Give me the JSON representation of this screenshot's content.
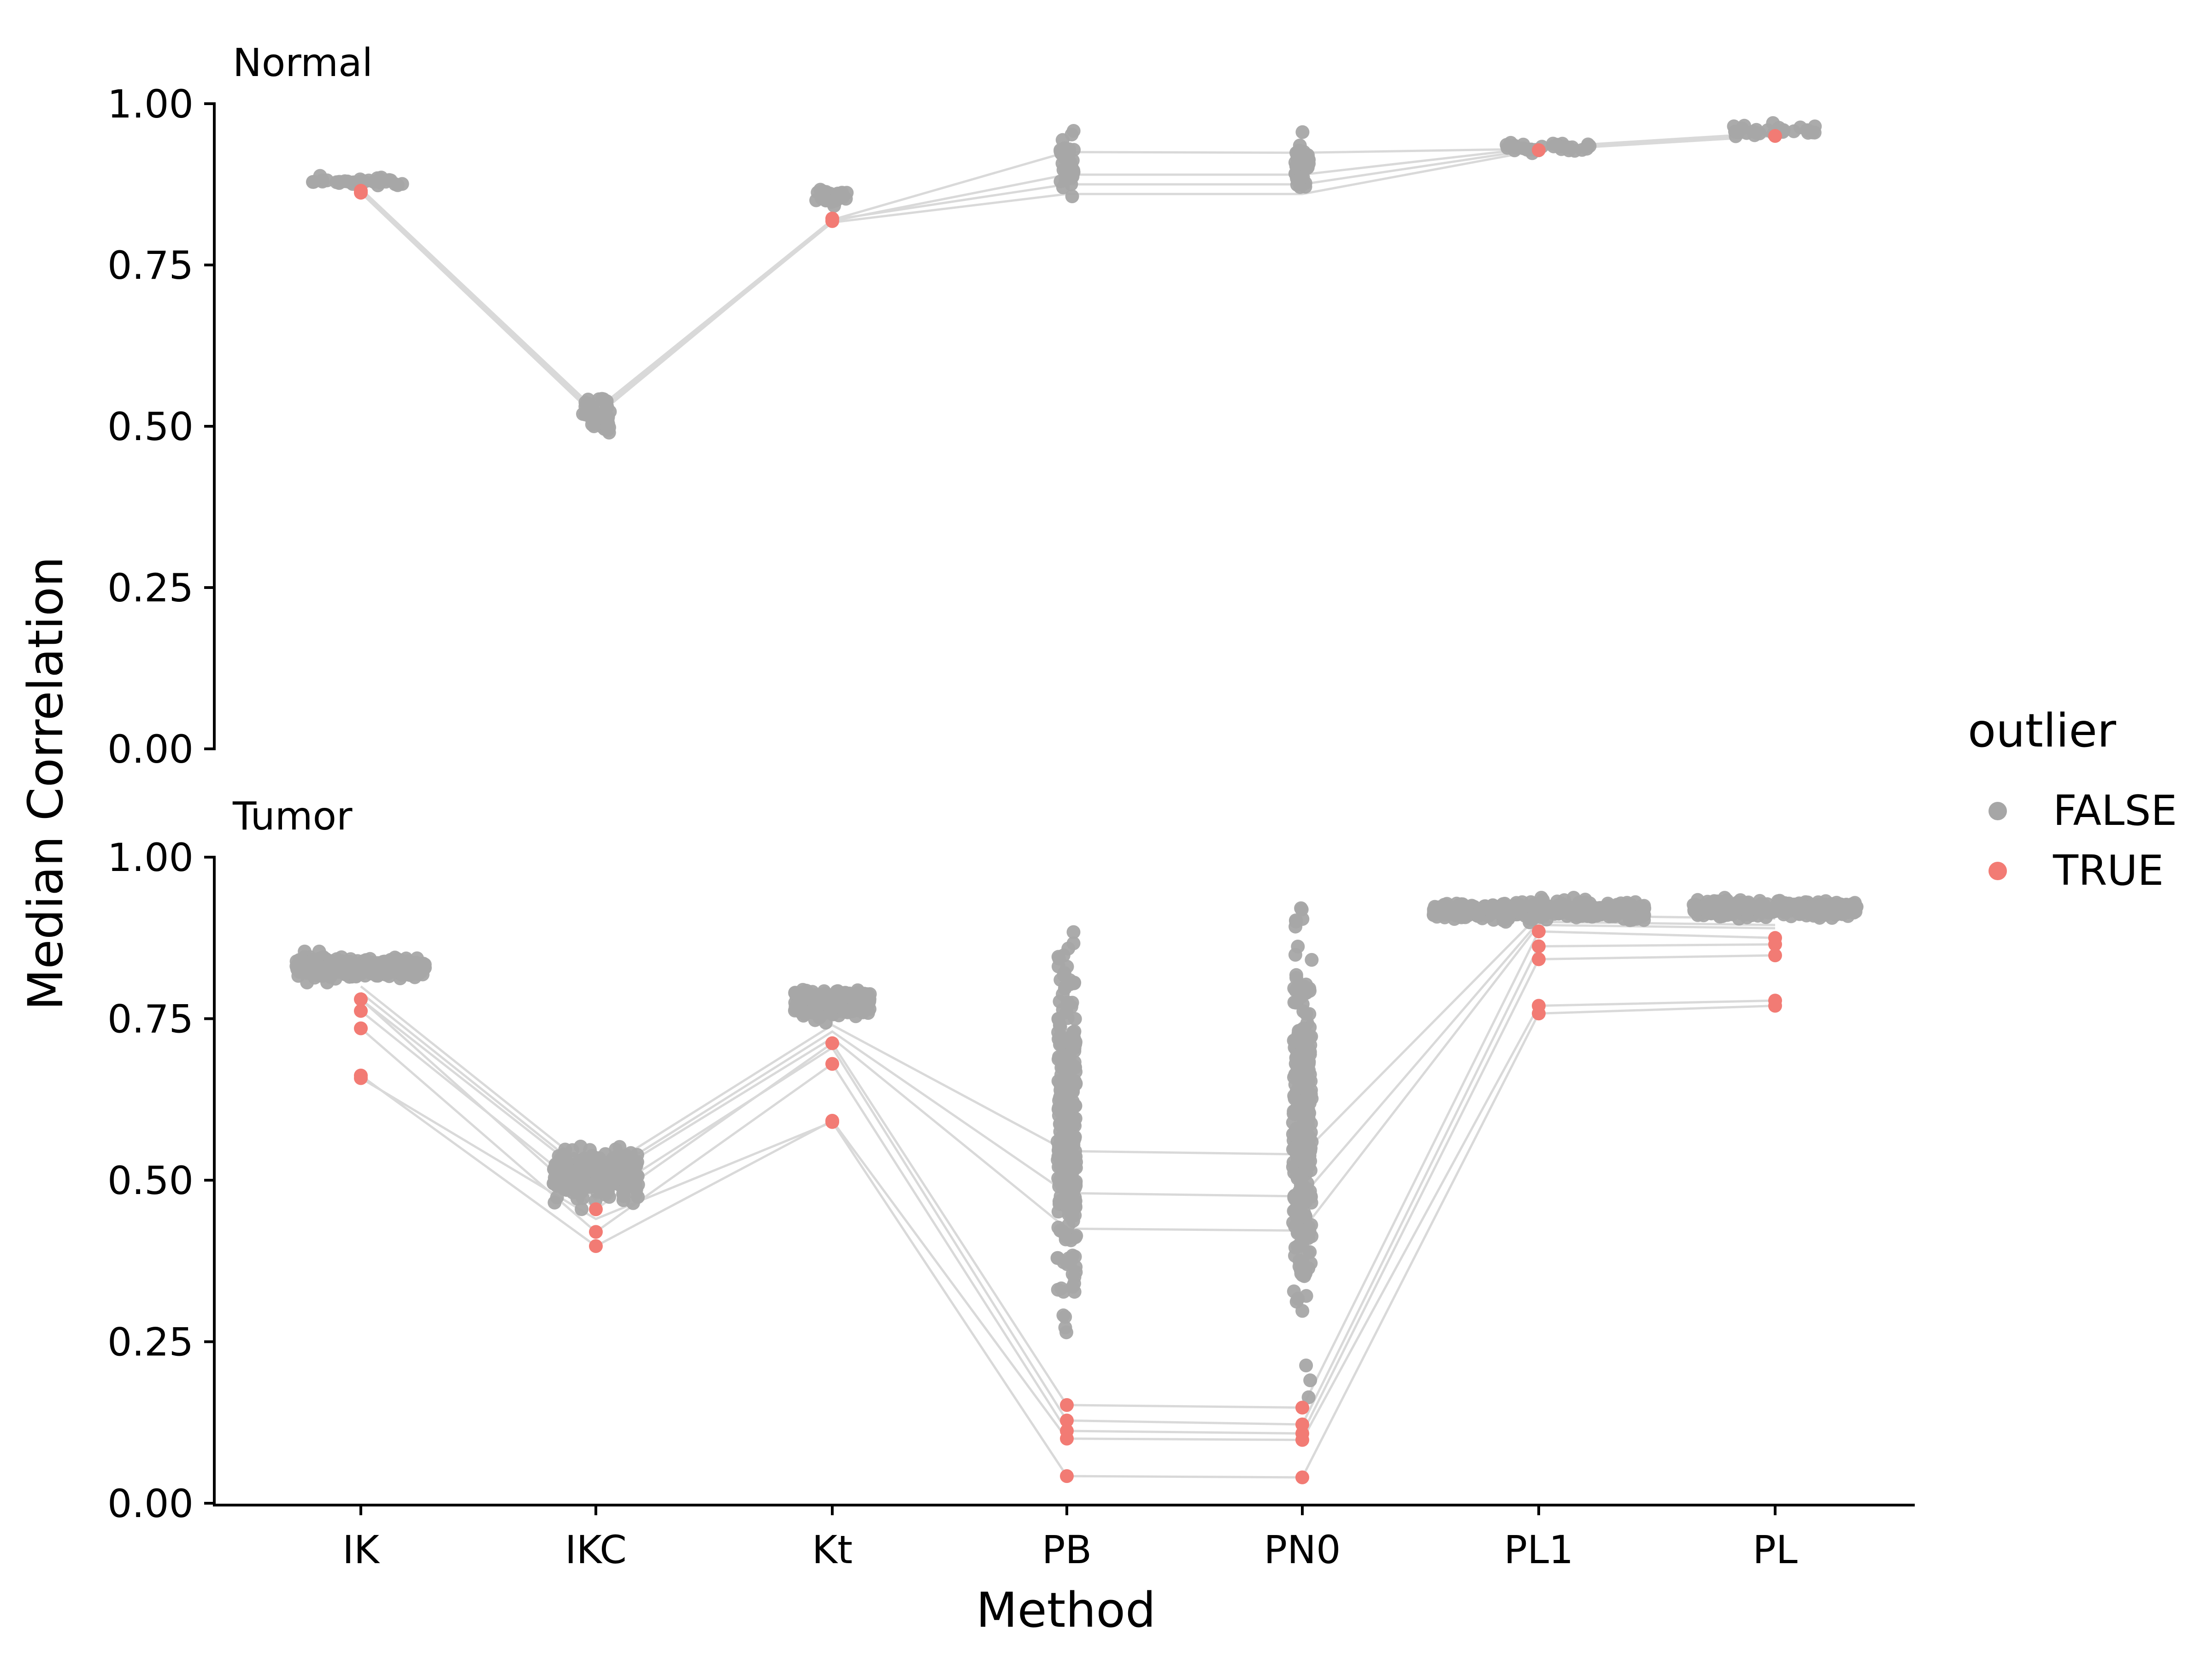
{
  "chart_data": {
    "type": "scatter",
    "xlabel": "Method",
    "ylabel": "Median Correlation",
    "categories": [
      "IK",
      "IKC",
      "Kt",
      "PB",
      "PN0",
      "PL1",
      "PL"
    ],
    "ylim": [
      0,
      1
    ],
    "yticks": [
      "0.00",
      "0.25",
      "0.50",
      "0.75",
      "1.00"
    ],
    "grid": false,
    "legend": {
      "title": "outlier",
      "position": "right",
      "entries": [
        {
          "label": "FALSE",
          "color": "#a6a6a6"
        },
        {
          "label": "TRUE",
          "color": "#f27b74"
        }
      ]
    },
    "colors": {
      "false": "#a6a6a6",
      "true": "#f27b74",
      "line": "#d9d9d9"
    },
    "panels": [
      {
        "title": "Normal",
        "non_outlier_clusters": [
          {
            "category": "IK",
            "center": 0.88,
            "spread": 0.008,
            "width": 0.42,
            "n": 35
          },
          {
            "category": "IKC",
            "center": 0.52,
            "spread": 0.03,
            "width": 0.12,
            "n": 40
          },
          {
            "category": "Kt",
            "center": 0.855,
            "spread": 0.015,
            "width": 0.15,
            "n": 30
          },
          {
            "category": "PB",
            "center": 0.905,
            "spread": 0.04,
            "width": 0.06,
            "n": 40
          },
          {
            "category": "PN0",
            "center": 0.905,
            "spread": 0.04,
            "width": 0.06,
            "n": 40
          },
          {
            "category": "PL1",
            "center": 0.932,
            "spread": 0.008,
            "width": 0.45,
            "n": 35
          },
          {
            "category": "PL",
            "center": 0.958,
            "spread": 0.008,
            "width": 0.36,
            "n": 30
          }
        ],
        "outlier_points": [
          {
            "category": "IK",
            "values": [
              0.865,
              0.862
            ]
          },
          {
            "category": "Kt",
            "values": [
              0.822,
              0.818
            ]
          },
          {
            "category": "PL1",
            "values": [
              0.928
            ]
          },
          {
            "category": "PL",
            "values": [
              0.95
            ]
          }
        ],
        "lines": [
          [
            0.865,
            0.52,
            0.82,
            0.925,
            0.924,
            0.93,
            0.95
          ],
          [
            0.862,
            0.515,
            0.818,
            0.89,
            0.89,
            0.932,
            0.955
          ],
          [
            0.868,
            0.525,
            0.82,
            0.875,
            0.875,
            0.93,
            0.952
          ],
          [
            0.864,
            0.518,
            0.816,
            0.86,
            0.86,
            0.928,
            0.95
          ]
        ]
      },
      {
        "title": "Tumor",
        "non_outlier_clusters": [
          {
            "category": "IK",
            "center": 0.83,
            "spread": 0.015,
            "width": 0.55,
            "n": 260
          },
          {
            "category": "IKC",
            "center": 0.505,
            "spread": 0.035,
            "width": 0.36,
            "n": 280
          },
          {
            "category": "Kt",
            "center": 0.775,
            "spread": 0.022,
            "width": 0.32,
            "n": 200
          },
          {
            "category": "PB",
            "center": 0.58,
            "spread": 0.26,
            "width": 0.08,
            "n": 280
          },
          {
            "category": "PN0",
            "center": 0.58,
            "spread": 0.26,
            "width": 0.08,
            "n": 280
          },
          {
            "category": "PL1",
            "center": 0.918,
            "spread": 0.012,
            "width": 0.9,
            "n": 360
          },
          {
            "category": "PL",
            "center": 0.92,
            "spread": 0.012,
            "width": 0.7,
            "n": 300
          }
        ],
        "outlier_points": [
          {
            "category": "IK",
            "values": [
              0.78,
              0.762,
              0.735,
              0.662,
              0.658
            ]
          },
          {
            "category": "IKC",
            "values": [
              0.455,
              0.42,
              0.398
            ]
          },
          {
            "category": "Kt",
            "values": [
              0.712,
              0.68,
              0.592,
              0.59
            ]
          },
          {
            "category": "PB",
            "values": [
              0.152,
              0.128,
              0.112,
              0.1,
              0.042
            ]
          },
          {
            "category": "PN0",
            "values": [
              0.148,
              0.122,
              0.108,
              0.098,
              0.04
            ]
          },
          {
            "category": "PL1",
            "values": [
              0.885,
              0.862,
              0.842,
              0.77,
              0.758
            ]
          },
          {
            "category": "PL",
            "values": [
              0.875,
              0.865,
              0.848,
              0.778,
              0.77
            ]
          }
        ],
        "lines": [
          [
            0.8,
            0.51,
            0.74,
            0.545,
            0.54,
            0.91,
            0.905
          ],
          [
            0.79,
            0.5,
            0.73,
            0.48,
            0.475,
            0.9,
            0.895
          ],
          [
            0.78,
            0.495,
            0.72,
            0.425,
            0.422,
            0.895,
            0.89
          ],
          [
            0.78,
            0.455,
            0.712,
            0.152,
            0.148,
            0.885,
            0.875
          ],
          [
            0.762,
            0.47,
            0.705,
            0.128,
            0.122,
            0.862,
            0.865
          ],
          [
            0.735,
            0.42,
            0.68,
            0.112,
            0.108,
            0.842,
            0.848
          ],
          [
            0.662,
            0.398,
            0.592,
            0.1,
            0.098,
            0.77,
            0.778
          ],
          [
            0.658,
            0.44,
            0.59,
            0.042,
            0.04,
            0.758,
            0.77
          ]
        ]
      }
    ]
  }
}
